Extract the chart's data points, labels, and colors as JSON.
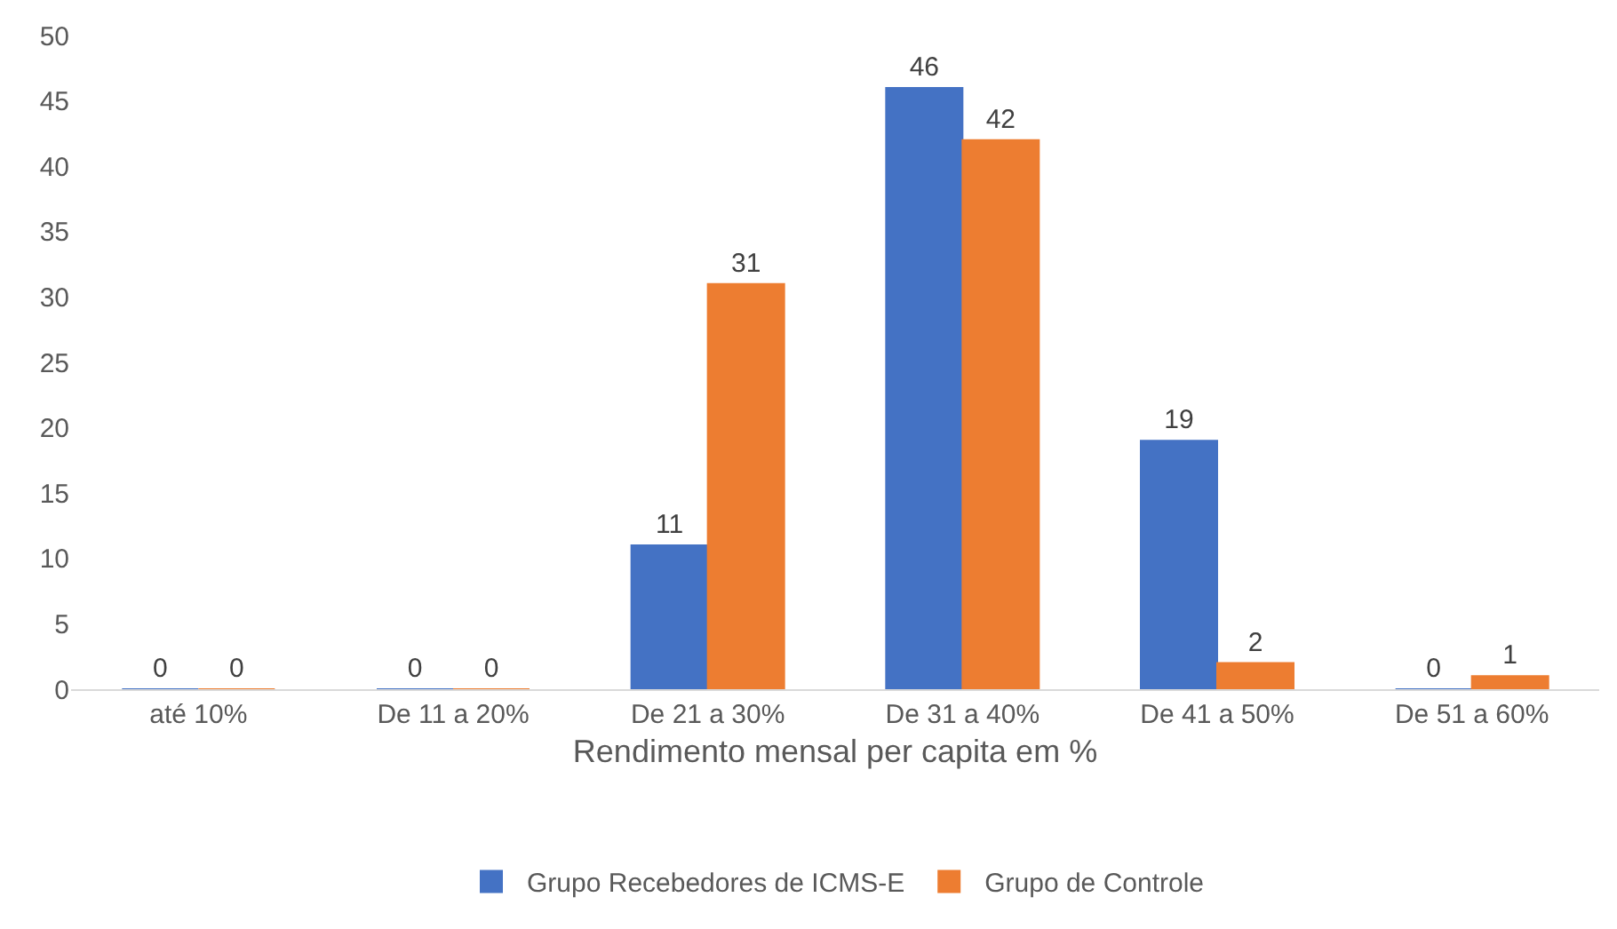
{
  "chart_data": {
    "type": "bar",
    "xlabel": "Rendimento mensal per capita em %",
    "categories": [
      "até 10%",
      "De 11 a 20%",
      "De 21 a 30%",
      "De 31 a 40%",
      "De 41 a 50%",
      "De 51 a 60%"
    ],
    "series": [
      {
        "name": "Grupo Recebedores de ICMS-E",
        "color": "#4472c4",
        "values": [
          0,
          0,
          11,
          46,
          19,
          0
        ]
      },
      {
        "name": "Grupo de Controle",
        "color": "#ed7d31",
        "values": [
          0,
          0,
          31,
          42,
          2,
          1
        ]
      }
    ],
    "ylim": [
      0,
      50
    ],
    "yticks": [
      0,
      5,
      10,
      15,
      20,
      25,
      30,
      35,
      40,
      45,
      50
    ],
    "data_labels": true,
    "grid": false,
    "legend": "bottom"
  }
}
